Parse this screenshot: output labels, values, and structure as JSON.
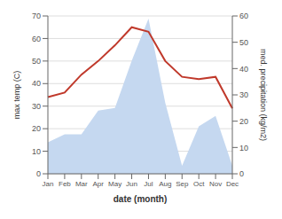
{
  "chart_data": {
    "type": "line",
    "categories": [
      "Jan",
      "Feb",
      "Mar",
      "Apr",
      "May",
      "Jun",
      "Jul",
      "Aug",
      "Sep",
      "Oct",
      "Nov",
      "Dec"
    ],
    "xlabel": "date (month)",
    "ylabel": "max temp (C)",
    "y2label": "med. precipitation (kg/m2)",
    "ylim": [
      0,
      70
    ],
    "yticks": [
      0,
      10,
      20,
      30,
      40,
      50,
      60,
      70
    ],
    "y2lim": [
      0,
      60
    ],
    "y2ticks": [
      0,
      10,
      20,
      30,
      40,
      50,
      60
    ],
    "grid": true,
    "series": [
      {
        "type": "area",
        "axis": "y2",
        "color": "#c5d8f0",
        "values": [
          12,
          15,
          15,
          24,
          25,
          43,
          59,
          27,
          3,
          18,
          22,
          3
        ]
      },
      {
        "type": "line",
        "color": "#c0392b",
        "values": [
          34,
          36,
          44,
          50,
          57,
          65,
          63,
          50,
          43,
          42,
          43,
          29
        ]
      }
    ]
  }
}
